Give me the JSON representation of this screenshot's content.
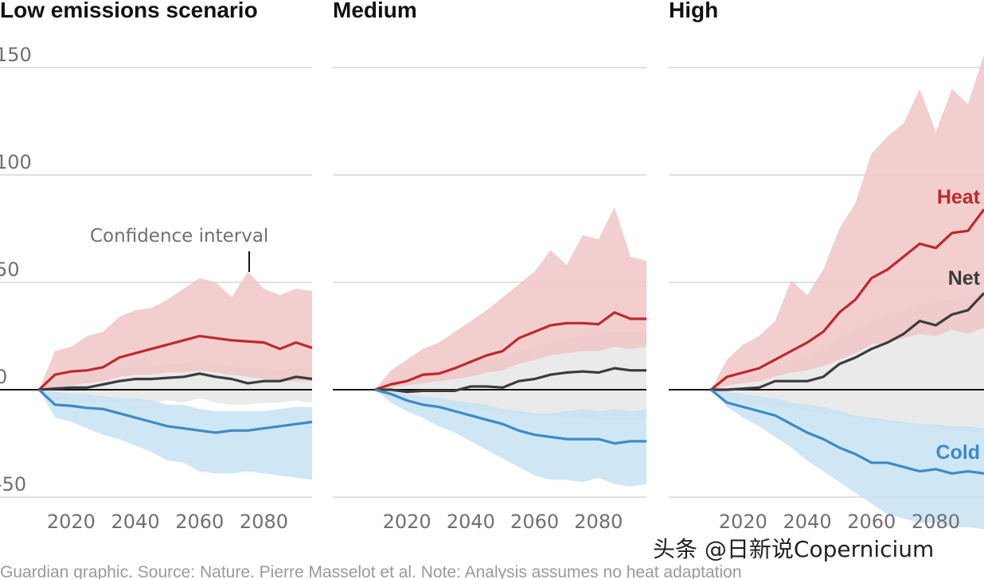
{
  "chart_data": [
    {
      "type": "line",
      "title": "Low emissions scenario",
      "ylim": [
        -55,
        155
      ],
      "yticks": [
        -50,
        0,
        50,
        100,
        150
      ],
      "xticks": [
        2020,
        2040,
        2060,
        2080
      ],
      "annotation": "Confidence interval",
      "x": [
        2010,
        2015,
        2020,
        2025,
        2030,
        2035,
        2040,
        2045,
        2050,
        2055,
        2060,
        2065,
        2070,
        2075,
        2080,
        2085,
        2090,
        2095
      ],
      "series": [
        {
          "name": "",
          "color": "#c0282b",
          "values": [
            0,
            7,
            8.5,
            9,
            10.5,
            15,
            17,
            19,
            21,
            23,
            25,
            24,
            23,
            22.5,
            22,
            19,
            22,
            19.5
          ],
          "band": [
            [
              0,
              0
            ],
            [
              1,
              18
            ],
            [
              2,
              20
            ],
            [
              3,
              25
            ],
            [
              4,
              27
            ],
            [
              6,
              34
            ],
            [
              7,
              37
            ],
            [
              7,
              38
            ],
            [
              8,
              42
            ],
            [
              8,
              47
            ],
            [
              9,
              52
            ],
            [
              8,
              50
            ],
            [
              7,
              43
            ],
            [
              6,
              55
            ],
            [
              5,
              47
            ],
            [
              4,
              44
            ],
            [
              4,
              47
            ],
            [
              4,
              46
            ]
          ]
        },
        {
          "name": "",
          "color": "#3c3c3c",
          "values": [
            0,
            0.5,
            1,
            1,
            2.5,
            4,
            5,
            5,
            5.5,
            6,
            7.5,
            6,
            5,
            3,
            4,
            4,
            6,
            5
          ],
          "band": [
            [
              0,
              0
            ],
            [
              -5,
              5
            ],
            [
              -7,
              7
            ],
            [
              -6,
              8
            ],
            [
              -5,
              9
            ],
            [
              -6,
              10
            ],
            [
              -5,
              11
            ],
            [
              -6,
              11
            ],
            [
              -5,
              12
            ],
            [
              -6,
              12
            ],
            [
              -4,
              14
            ],
            [
              -6,
              12
            ],
            [
              -7,
              11
            ],
            [
              -7,
              10
            ],
            [
              -6,
              10
            ],
            [
              -6,
              9
            ],
            [
              -5,
              10
            ],
            [
              -6,
              10
            ]
          ]
        },
        {
          "name": "",
          "color": "#3d8ac6",
          "values": [
            0,
            -7,
            -7.5,
            -8.5,
            -9,
            -11,
            -13,
            -15,
            -17,
            -18,
            -19,
            -20,
            -19,
            -19,
            -18,
            -17,
            -16,
            -15
          ],
          "band": [
            [
              0,
              0
            ],
            [
              -13,
              -1
            ],
            [
              -15,
              -2
            ],
            [
              -18,
              -2
            ],
            [
              -21,
              -3
            ],
            [
              -23,
              -4
            ],
            [
              -26,
              -4
            ],
            [
              -29,
              -5
            ],
            [
              -33,
              -7
            ],
            [
              -34,
              -7
            ],
            [
              -38,
              -9
            ],
            [
              -39,
              -10
            ],
            [
              -39,
              -10
            ],
            [
              -38,
              -10
            ],
            [
              -39,
              -10
            ],
            [
              -40,
              -9
            ],
            [
              -41,
              -8
            ],
            [
              -42,
              -8
            ]
          ]
        }
      ]
    },
    {
      "type": "line",
      "title": "Medium",
      "ylim": [
        -55,
        155
      ],
      "xticks": [
        2020,
        2040,
        2060,
        2080
      ],
      "x": [
        2010,
        2015,
        2020,
        2025,
        2030,
        2035,
        2040,
        2045,
        2050,
        2055,
        2060,
        2065,
        2070,
        2075,
        2080,
        2085,
        2090,
        2095
      ],
      "series": [
        {
          "name": "",
          "color": "#c0282b",
          "values": [
            0,
            2.5,
            4,
            7,
            7.5,
            10,
            13,
            16,
            18,
            24,
            27,
            30,
            31,
            31,
            30.5,
            36,
            33,
            33
          ],
          "band": [
            [
              0,
              0
            ],
            [
              1,
              9
            ],
            [
              2,
              14
            ],
            [
              3,
              19
            ],
            [
              4,
              22
            ],
            [
              5,
              27
            ],
            [
              6,
              32
            ],
            [
              8,
              37
            ],
            [
              9,
              43
            ],
            [
              12,
              49
            ],
            [
              14,
              55
            ],
            [
              16,
              65
            ],
            [
              17,
              58
            ],
            [
              18,
              72
            ],
            [
              18,
              70
            ],
            [
              20,
              85
            ],
            [
              19,
              62
            ],
            [
              20,
              60
            ]
          ]
        },
        {
          "name": "",
          "color": "#3c3c3c",
          "values": [
            0,
            0,
            -1,
            -0.5,
            -0.5,
            -0.5,
            1.5,
            1.5,
            1,
            4,
            5,
            7,
            8,
            8.5,
            8,
            10,
            9,
            9
          ],
          "band": [
            [
              0,
              0
            ],
            [
              -4,
              5
            ],
            [
              -6,
              7
            ],
            [
              -7,
              8
            ],
            [
              -8,
              10
            ],
            [
              -9,
              11
            ],
            [
              -9,
              13
            ],
            [
              -10,
              14
            ],
            [
              -10,
              15
            ],
            [
              -11,
              18
            ],
            [
              -12,
              20
            ],
            [
              -12,
              22
            ],
            [
              -13,
              24
            ],
            [
              -13,
              25
            ],
            [
              -14,
              26
            ],
            [
              -14,
              27
            ],
            [
              -14,
              27
            ],
            [
              -14,
              27
            ]
          ]
        },
        {
          "name": "",
          "color": "#3d8ac6",
          "values": [
            0,
            -2,
            -5,
            -7,
            -8,
            -10,
            -12,
            -14,
            -16,
            -19,
            -21,
            -22,
            -23,
            -23,
            -23,
            -25,
            -24,
            -24
          ],
          "band": [
            [
              0,
              0
            ],
            [
              -6,
              -1
            ],
            [
              -10,
              -2
            ],
            [
              -13,
              -3
            ],
            [
              -17,
              -4
            ],
            [
              -20,
              -5
            ],
            [
              -24,
              -6
            ],
            [
              -28,
              -7
            ],
            [
              -32,
              -9
            ],
            [
              -36,
              -10
            ],
            [
              -40,
              -11
            ],
            [
              -42,
              -11
            ],
            [
              -42,
              -10
            ],
            [
              -43,
              -9
            ],
            [
              -41,
              -10
            ],
            [
              -44,
              -9
            ],
            [
              -45,
              -10
            ],
            [
              -44,
              -9
            ]
          ]
        }
      ]
    },
    {
      "type": "line",
      "title": "High",
      "ylim": [
        -55,
        155
      ],
      "xticks": [
        2020,
        2040,
        2060,
        2080
      ],
      "x": [
        2010,
        2015,
        2020,
        2025,
        2030,
        2035,
        2040,
        2045,
        2050,
        2055,
        2060,
        2065,
        2070,
        2075,
        2080,
        2085,
        2090,
        2095
      ],
      "series": [
        {
          "name": "Heat",
          "color": "#c0282b",
          "values": [
            0,
            6,
            8,
            10,
            14,
            18,
            22,
            27,
            36,
            42,
            52,
            56,
            62,
            68,
            66,
            73,
            74,
            84
          ],
          "band": [
            [
              0,
              0
            ],
            [
              2,
              14
            ],
            [
              3,
              21
            ],
            [
              4,
              25
            ],
            [
              6,
              32
            ],
            [
              8,
              51
            ],
            [
              9,
              44
            ],
            [
              11,
              56
            ],
            [
              14,
              75
            ],
            [
              17,
              87
            ],
            [
              21,
              110
            ],
            [
              22,
              118
            ],
            [
              24,
              124
            ],
            [
              26,
              140
            ],
            [
              25,
              120
            ],
            [
              28,
              140
            ],
            [
              26,
              133
            ],
            [
              29,
              156
            ]
          ]
        },
        {
          "name": "Net",
          "color": "#3c3c3c",
          "values": [
            0,
            0,
            0.5,
            1,
            4,
            4,
            4,
            6,
            12,
            15,
            19,
            22,
            26,
            32,
            30,
            35,
            37,
            45
          ],
          "band": [
            [
              0,
              0
            ],
            [
              -4,
              4
            ],
            [
              -6,
              6
            ],
            [
              -7,
              8
            ],
            [
              -8,
              12
            ],
            [
              -9,
              14
            ],
            [
              -10,
              16
            ],
            [
              -11,
              19
            ],
            [
              -12,
              24
            ],
            [
              -13,
              28
            ],
            [
              -14,
              32
            ],
            [
              -15,
              35
            ],
            [
              -16,
              37
            ],
            [
              -17,
              40
            ],
            [
              -18,
              41
            ],
            [
              -19,
              42
            ],
            [
              -19,
              43
            ],
            [
              -20,
              44
            ]
          ]
        },
        {
          "name": "Cold",
          "color": "#3d8ac6",
          "values": [
            0,
            -6,
            -8,
            -10,
            -12,
            -16,
            -20,
            -23,
            -27,
            -30,
            -34,
            -34,
            -36,
            -38,
            -37,
            -39,
            -38,
            -39
          ],
          "band": [
            [
              0,
              0
            ],
            [
              -8,
              -1
            ],
            [
              -13,
              -2
            ],
            [
              -17,
              -3
            ],
            [
              -22,
              -4
            ],
            [
              -27,
              -6
            ],
            [
              -33,
              -7
            ],
            [
              -38,
              -8
            ],
            [
              -43,
              -10
            ],
            [
              -48,
              -12
            ],
            [
              -53,
              -13
            ],
            [
              -58,
              -14
            ],
            [
              -60,
              -15
            ],
            [
              -62,
              -16
            ],
            [
              -62,
              -16
            ],
            [
              -64,
              -17
            ],
            [
              -64,
              -17
            ],
            [
              -65,
              -18
            ]
          ]
        }
      ]
    }
  ],
  "source_note": "Guardian graphic. Source: Nature. Pierre Masselot et al. Note: Analysis assumes no heat adaptation",
  "watermark": "头条 @日新说Copernicium",
  "colors": {
    "heat": "#c0282b",
    "heat_band": "#f0c6c7",
    "net": "#3c3c3c",
    "net_band": "#e6e6e6",
    "cold": "#3d8ac6",
    "cold_band": "#c7e2f3",
    "grid": "#cfcfcf",
    "zero": "#121212"
  }
}
